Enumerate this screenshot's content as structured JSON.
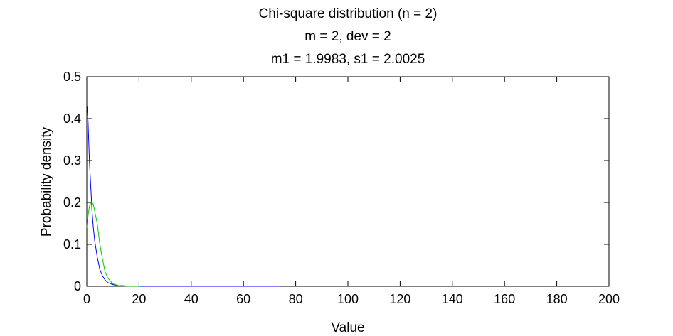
{
  "chart_data": {
    "type": "line",
    "title_lines": [
      "Chi-square distribution (n = 2)",
      "m = 2, dev = 2",
      "m1 = 1.9983, s1 = 2.0025"
    ],
    "xlabel": "Value",
    "ylabel": "Probability density",
    "xlim": [
      0,
      200
    ],
    "ylim": [
      0,
      0.5
    ],
    "x_ticks": [
      0,
      20,
      40,
      60,
      80,
      100,
      120,
      140,
      160,
      180,
      200
    ],
    "y_ticks": [
      0,
      0.1,
      0.2,
      0.3,
      0.4,
      0.5
    ],
    "grid": false,
    "legend": "none",
    "series": [
      {
        "color": "#0000ff",
        "x": [
          0.18,
          0.5,
          1,
          1.5,
          2,
          2.5,
          3,
          4,
          5,
          6,
          7,
          8,
          10,
          12,
          15,
          20,
          30,
          45,
          60,
          74
        ],
        "values": [
          0.43,
          0.39,
          0.3,
          0.24,
          0.18,
          0.14,
          0.11,
          0.07,
          0.04,
          0.025,
          0.015,
          0.009,
          0.004,
          0.002,
          0.001,
          0.0002,
          0,
          0,
          0,
          0
        ]
      },
      {
        "color": "#00cc00",
        "x": [
          0,
          0.5,
          1,
          1.5,
          2,
          2.5,
          3,
          4,
          5,
          6,
          7,
          8,
          10,
          12,
          15,
          20
        ],
        "values": [
          0.14,
          0.17,
          0.19,
          0.199,
          0.2,
          0.195,
          0.18,
          0.15,
          0.1,
          0.065,
          0.035,
          0.02,
          0.006,
          0.002,
          0.0003,
          0
        ]
      }
    ]
  }
}
